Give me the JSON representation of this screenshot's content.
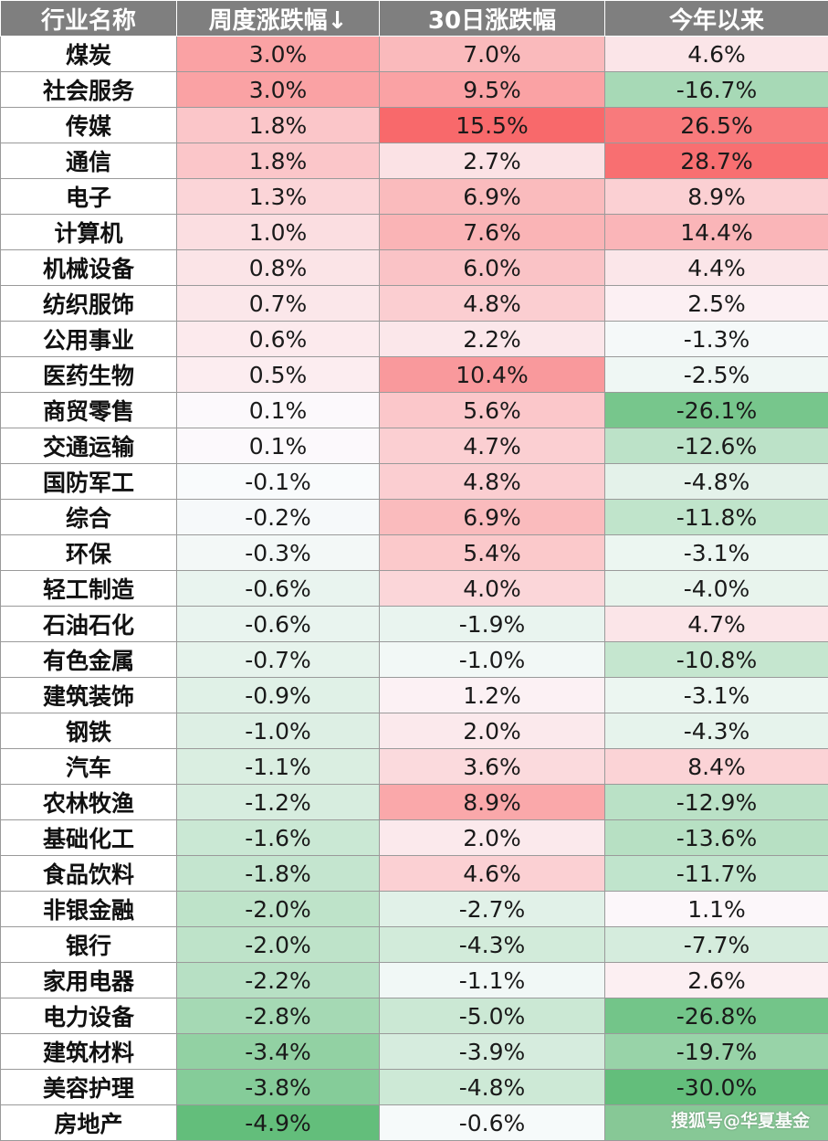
{
  "chart_data": {
    "type": "table",
    "columns": [
      "行业名称",
      "周度涨跌幅↓",
      "30日涨跌幅",
      "今年以来"
    ],
    "rows": [
      {
        "name": "煤炭",
        "weekly": "3.0%",
        "d30": "7.0%",
        "ytd": "4.6%"
      },
      {
        "name": "社会服务",
        "weekly": "3.0%",
        "d30": "9.5%",
        "ytd": "-16.7%"
      },
      {
        "name": "传媒",
        "weekly": "1.8%",
        "d30": "15.5%",
        "ytd": "26.5%"
      },
      {
        "name": "通信",
        "weekly": "1.8%",
        "d30": "2.7%",
        "ytd": "28.7%"
      },
      {
        "name": "电子",
        "weekly": "1.3%",
        "d30": "6.9%",
        "ytd": "8.9%"
      },
      {
        "name": "计算机",
        "weekly": "1.0%",
        "d30": "7.6%",
        "ytd": "14.4%"
      },
      {
        "name": "机械设备",
        "weekly": "0.8%",
        "d30": "6.0%",
        "ytd": "4.4%"
      },
      {
        "name": "纺织服饰",
        "weekly": "0.7%",
        "d30": "4.8%",
        "ytd": "2.5%"
      },
      {
        "name": "公用事业",
        "weekly": "0.6%",
        "d30": "2.2%",
        "ytd": "-1.3%"
      },
      {
        "name": "医药生物",
        "weekly": "0.5%",
        "d30": "10.4%",
        "ytd": "-2.5%"
      },
      {
        "name": "商贸零售",
        "weekly": "0.1%",
        "d30": "5.6%",
        "ytd": "-26.1%"
      },
      {
        "name": "交通运输",
        "weekly": "0.1%",
        "d30": "4.7%",
        "ytd": "-12.6%"
      },
      {
        "name": "国防军工",
        "weekly": "-0.1%",
        "d30": "4.8%",
        "ytd": "-4.8%"
      },
      {
        "name": "综合",
        "weekly": "-0.2%",
        "d30": "6.9%",
        "ytd": "-11.8%"
      },
      {
        "name": "环保",
        "weekly": "-0.3%",
        "d30": "5.4%",
        "ytd": "-3.1%"
      },
      {
        "name": "轻工制造",
        "weekly": "-0.6%",
        "d30": "4.0%",
        "ytd": "-4.0%"
      },
      {
        "name": "石油石化",
        "weekly": "-0.6%",
        "d30": "-1.9%",
        "ytd": "4.7%"
      },
      {
        "name": "有色金属",
        "weekly": "-0.7%",
        "d30": "-1.0%",
        "ytd": "-10.8%"
      },
      {
        "name": "建筑装饰",
        "weekly": "-0.9%",
        "d30": "1.2%",
        "ytd": "-3.1%"
      },
      {
        "name": "钢铁",
        "weekly": "-1.0%",
        "d30": "2.0%",
        "ytd": "-4.3%"
      },
      {
        "name": "汽车",
        "weekly": "-1.1%",
        "d30": "3.6%",
        "ytd": "8.4%"
      },
      {
        "name": "农林牧渔",
        "weekly": "-1.2%",
        "d30": "8.9%",
        "ytd": "-12.9%"
      },
      {
        "name": "基础化工",
        "weekly": "-1.6%",
        "d30": "2.0%",
        "ytd": "-13.6%"
      },
      {
        "name": "食品饮料",
        "weekly": "-1.8%",
        "d30": "4.6%",
        "ytd": "-11.7%"
      },
      {
        "name": "非银金融",
        "weekly": "-2.0%",
        "d30": "-2.7%",
        "ytd": "1.1%"
      },
      {
        "name": "银行",
        "weekly": "-2.0%",
        "d30": "-4.3%",
        "ytd": "-7.7%"
      },
      {
        "name": "家用电器",
        "weekly": "-2.2%",
        "d30": "-1.1%",
        "ytd": "2.6%"
      },
      {
        "name": "电力设备",
        "weekly": "-2.8%",
        "d30": "-5.0%",
        "ytd": "-26.8%"
      },
      {
        "name": "建筑材料",
        "weekly": "-3.4%",
        "d30": "-3.9%",
        "ytd": "-19.7%"
      },
      {
        "name": "美容护理",
        "weekly": "-3.8%",
        "d30": "-4.8%",
        "ytd": "-30.0%"
      },
      {
        "name": "房地产",
        "weekly": "-4.9%",
        "d30": "-0.6%",
        "ytd": ""
      }
    ],
    "colors": {
      "header_bg": "#7f7f7f",
      "positive_max": "#f8696b",
      "negative_max": "#63be7b",
      "neutral": "#fcfcff"
    }
  },
  "watermark": "搜狐号@华夏基金"
}
